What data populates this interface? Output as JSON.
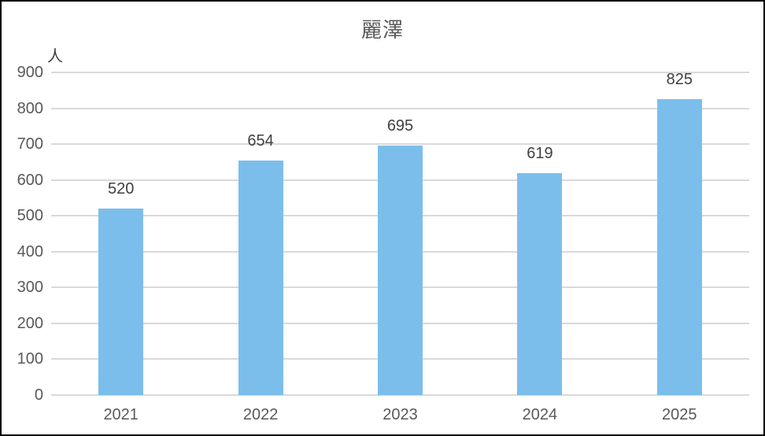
{
  "chart_data": {
    "type": "bar",
    "title": "麗澤",
    "unit_label": "人",
    "categories": [
      "2021",
      "2022",
      "2023",
      "2024",
      "2025"
    ],
    "values": [
      520,
      654,
      695,
      619,
      825
    ],
    "xlabel": "",
    "ylabel": "人",
    "ylim": [
      0,
      900
    ],
    "ytick_step": 100,
    "grid": true,
    "legend": "none",
    "colors": {
      "bar_fill": "#7CBEEB",
      "gridline": "#D9D9D9",
      "tick_label": "#595959",
      "value_label": "#404040",
      "title": "#595959",
      "frame_border": "#000000",
      "background": "#FFFFFF"
    }
  }
}
